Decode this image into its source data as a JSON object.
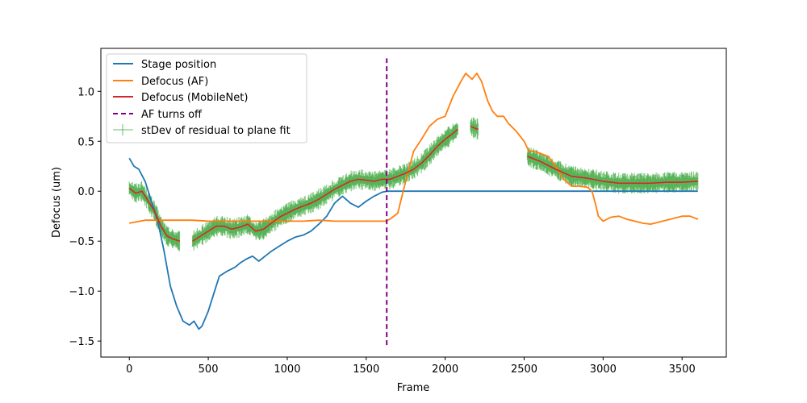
{
  "chart_data": {
    "type": "line",
    "title": "",
    "xlabel": "Frame",
    "ylabel": "Defocus (um)",
    "xlim": [
      -180,
      3780
    ],
    "ylim": [
      -1.66,
      1.43
    ],
    "xticks": [
      0,
      500,
      1000,
      1500,
      2000,
      2500,
      3000,
      3500
    ],
    "xtick_labels": [
      "0",
      "500",
      "1000",
      "1500",
      "2000",
      "2500",
      "3000",
      "3500"
    ],
    "yticks": [
      -1.5,
      -1.0,
      -0.5,
      0.0,
      0.5,
      1.0
    ],
    "ytick_labels": [
      "−1.5",
      "−1.0",
      "−0.5",
      "0.0",
      "0.5",
      "1.0"
    ],
    "grid": false,
    "legend_position": "upper-left",
    "colors": {
      "stage": "#1f77b4",
      "af": "#ff7f0e",
      "mobilenet": "#d62728",
      "af_off": "#800080",
      "stdev": "#2ca02c"
    },
    "series": [
      {
        "name": "Stage position",
        "key": "stage",
        "x": [
          0,
          30,
          60,
          100,
          140,
          180,
          220,
          260,
          300,
          340,
          380,
          410,
          440,
          460,
          500,
          540,
          570,
          620,
          670,
          700,
          740,
          780,
          820,
          860,
          900,
          950,
          1000,
          1050,
          1100,
          1150,
          1200,
          1250,
          1300,
          1350,
          1400,
          1450,
          1500,
          1550,
          1600,
          1630,
          1650,
          3600
        ],
        "y": [
          0.33,
          0.25,
          0.22,
          0.1,
          -0.1,
          -0.3,
          -0.6,
          -0.95,
          -1.15,
          -1.3,
          -1.34,
          -1.3,
          -1.38,
          -1.35,
          -1.2,
          -1.0,
          -0.85,
          -0.8,
          -0.76,
          -0.72,
          -0.68,
          -0.65,
          -0.7,
          -0.65,
          -0.6,
          -0.55,
          -0.5,
          -0.46,
          -0.44,
          -0.4,
          -0.33,
          -0.25,
          -0.12,
          -0.05,
          -0.12,
          -0.16,
          -0.1,
          -0.05,
          -0.01,
          0.0,
          0.0,
          0.0
        ]
      },
      {
        "name": "Defocus (AF)",
        "key": "af",
        "x": [
          0,
          100,
          200,
          300,
          400,
          500,
          600,
          700,
          800,
          900,
          1000,
          1100,
          1200,
          1300,
          1400,
          1500,
          1620,
          1650,
          1700,
          1750,
          1800,
          1850,
          1900,
          1950,
          2000,
          2050,
          2100,
          2130,
          2150,
          2170,
          2200,
          2230,
          2270,
          2300,
          2330,
          2370,
          2400,
          2450,
          2500,
          2530,
          2560,
          2600,
          2650,
          2700,
          2750,
          2800,
          2850,
          2900,
          2930,
          2950,
          2970,
          3000,
          3050,
          3100,
          3150,
          3200,
          3250,
          3300,
          3350,
          3400,
          3450,
          3500,
          3550,
          3600
        ],
        "y": [
          -0.32,
          -0.29,
          -0.29,
          -0.29,
          -0.29,
          -0.3,
          -0.3,
          -0.3,
          -0.3,
          -0.3,
          -0.3,
          -0.3,
          -0.29,
          -0.3,
          -0.3,
          -0.3,
          -0.3,
          -0.28,
          -0.22,
          0.1,
          0.4,
          0.52,
          0.65,
          0.72,
          0.75,
          0.95,
          1.1,
          1.18,
          1.15,
          1.12,
          1.18,
          1.1,
          0.9,
          0.8,
          0.75,
          0.75,
          0.68,
          0.6,
          0.5,
          0.4,
          0.4,
          0.38,
          0.35,
          0.25,
          0.12,
          0.05,
          0.05,
          0.04,
          0.0,
          -0.12,
          -0.25,
          -0.3,
          -0.26,
          -0.25,
          -0.28,
          -0.3,
          -0.32,
          -0.33,
          -0.31,
          -0.29,
          -0.27,
          -0.25,
          -0.25,
          -0.28
        ]
      },
      {
        "name": "Defocus (MobileNet)",
        "key": "mobilenet",
        "segments": [
          {
            "x": [
              0,
              40,
              80,
              120,
              160,
              200,
              240,
              280,
              320
            ],
            "y": [
              0.03,
              -0.02,
              0.0,
              -0.1,
              -0.2,
              -0.35,
              -0.45,
              -0.48,
              -0.5
            ]
          },
          {
            "x": [
              400,
              450,
              500,
              550,
              600,
              650,
              700,
              750,
              800,
              850,
              900,
              950,
              1000,
              1050,
              1100,
              1150,
              1200,
              1250,
              1300,
              1350,
              1400,
              1450,
              1500,
              1550,
              1600,
              1650,
              1700,
              1750,
              1800,
              1850,
              1900,
              1950,
              2000,
              2050,
              2080
            ],
            "y": [
              -0.5,
              -0.45,
              -0.4,
              -0.35,
              -0.35,
              -0.38,
              -0.36,
              -0.33,
              -0.4,
              -0.38,
              -0.32,
              -0.26,
              -0.22,
              -0.18,
              -0.15,
              -0.12,
              -0.08,
              -0.03,
              0.02,
              0.06,
              0.1,
              0.12,
              0.11,
              0.1,
              0.12,
              0.12,
              0.15,
              0.18,
              0.22,
              0.28,
              0.36,
              0.45,
              0.52,
              0.58,
              0.62
            ]
          },
          {
            "x": [
              2160,
              2190,
              2210
            ],
            "y": [
              0.65,
              0.63,
              0.62
            ]
          },
          {
            "x": [
              2520,
              2600,
              2700,
              2800,
              2900,
              3000,
              3100,
              3200,
              3300,
              3400,
              3500,
              3600
            ],
            "y": [
              0.35,
              0.3,
              0.22,
              0.15,
              0.13,
              0.1,
              0.08,
              0.08,
              0.08,
              0.09,
              0.09,
              0.1
            ]
          }
        ]
      },
      {
        "name": "AF turns off",
        "key": "af_off",
        "x": [
          1630,
          1630
        ],
        "y": [
          -1.54,
          1.33
        ]
      },
      {
        "name": "stDev of residual to plane fit",
        "key": "stdev",
        "band_half_width": 0.07
      }
    ]
  }
}
